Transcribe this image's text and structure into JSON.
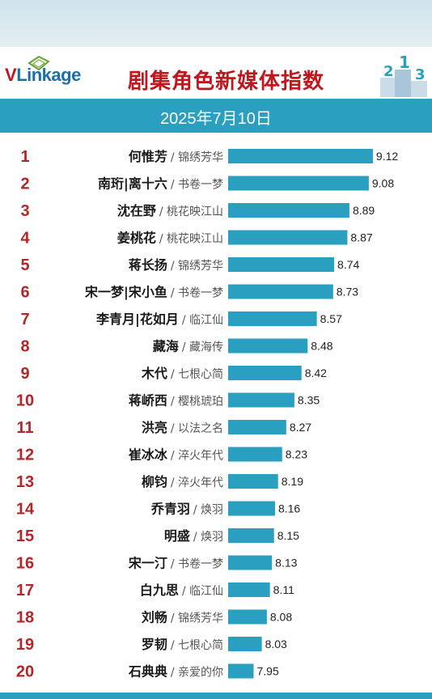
{
  "header": {
    "logo_v": "V",
    "logo_rest": "Linkage",
    "title": "剧集角色新媒体指数",
    "date": "2025年7月10日",
    "accent": "#2a9fbf",
    "title_color": "#c0161d"
  },
  "chart_data": {
    "type": "bar",
    "orientation": "horizontal",
    "bar_color": "#2a9fbf",
    "rank_color": "#b5262b",
    "name_color": "#1a1a1a",
    "drama_color": "#555555",
    "xlim": [
      7.7,
      9.2
    ],
    "grid": false,
    "rows": [
      {
        "rank": "1",
        "name": "何惟芳",
        "drama": "/ 锦绣芳华",
        "value": 9.12,
        "label": "9.12"
      },
      {
        "rank": "2",
        "name": "南珩|离十六",
        "drama": "/ 书卷一梦",
        "value": 9.08,
        "label": "9.08"
      },
      {
        "rank": "3",
        "name": "沈在野",
        "drama": "/ 桃花映江山",
        "value": 8.89,
        "label": "8.89"
      },
      {
        "rank": "4",
        "name": "姜桃花",
        "drama": "/ 桃花映江山",
        "value": 8.87,
        "label": "8.87"
      },
      {
        "rank": "5",
        "name": "蒋长扬",
        "drama": "/ 锦绣芳华",
        "value": 8.74,
        "label": "8.74"
      },
      {
        "rank": "6",
        "name": "宋一梦|宋小鱼",
        "drama": "/ 书卷一梦",
        "value": 8.73,
        "label": "8.73"
      },
      {
        "rank": "7",
        "name": "李青月|花如月",
        "drama": "/ 临江仙",
        "value": 8.57,
        "label": "8.57"
      },
      {
        "rank": "8",
        "name": "藏海",
        "drama": "/ 藏海传",
        "value": 8.48,
        "label": "8.48"
      },
      {
        "rank": "9",
        "name": "木代",
        "drama": "/ 七根心简",
        "value": 8.42,
        "label": "8.42"
      },
      {
        "rank": "10",
        "name": "蒋峤西",
        "drama": "/ 樱桃琥珀",
        "value": 8.35,
        "label": "8.35"
      },
      {
        "rank": "11",
        "name": "洪亮",
        "drama": "/ 以法之名",
        "value": 8.27,
        "label": "8.27"
      },
      {
        "rank": "12",
        "name": "崔冰冰",
        "drama": "/ 淬火年代",
        "value": 8.23,
        "label": "8.23"
      },
      {
        "rank": "13",
        "name": "柳钧",
        "drama": "/ 淬火年代",
        "value": 8.19,
        "label": "8.19"
      },
      {
        "rank": "14",
        "name": "乔青羽",
        "drama": "/ 焕羽",
        "value": 8.16,
        "label": "8.16"
      },
      {
        "rank": "15",
        "name": "明盛",
        "drama": "/ 焕羽",
        "value": 8.15,
        "label": "8.15"
      },
      {
        "rank": "16",
        "name": "宋一汀",
        "drama": "/ 书卷一梦",
        "value": 8.13,
        "label": "8.13"
      },
      {
        "rank": "17",
        "name": "白九思",
        "drama": "/ 临江仙",
        "value": 8.11,
        "label": "8.11"
      },
      {
        "rank": "18",
        "name": "刘畅",
        "drama": "/ 锦绣芳华",
        "value": 8.08,
        "label": "8.08"
      },
      {
        "rank": "19",
        "name": "罗韧",
        "drama": "/ 七根心简",
        "value": 8.03,
        "label": "8.03"
      },
      {
        "rank": "20",
        "name": "石典典",
        "drama": "/ 亲爱的你",
        "value": 7.95,
        "label": "7.95"
      }
    ]
  }
}
